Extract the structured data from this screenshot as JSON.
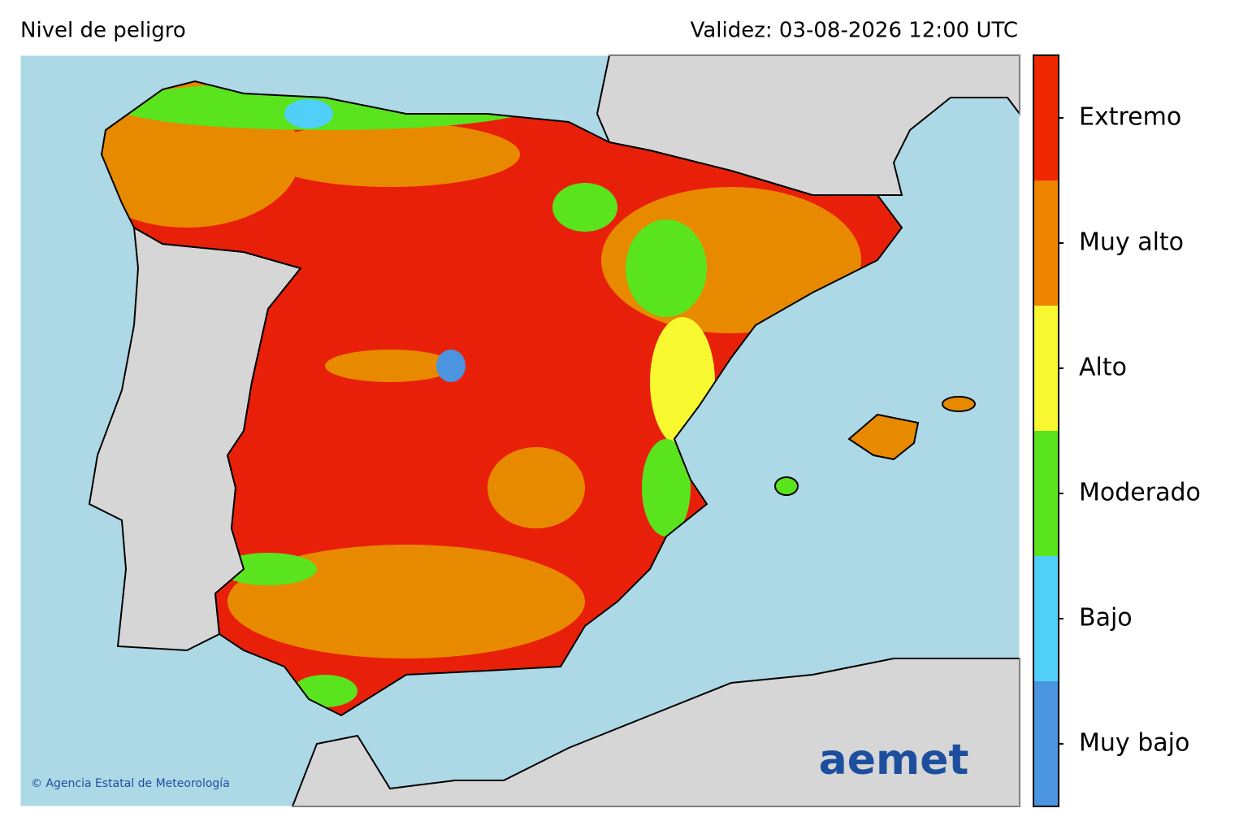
{
  "header": {
    "title": "Nivel de peligro",
    "validity": "Validez: 03-08-2026 12:00 UTC"
  },
  "legend": {
    "levels": [
      {
        "label": "Muy bajo",
        "color": "#4a94e0"
      },
      {
        "label": "Bajo",
        "color": "#50d0f8"
      },
      {
        "label": "Moderado",
        "color": "#5ae41e"
      },
      {
        "label": "Alto",
        "color": "#f8f830"
      },
      {
        "label": "Muy alto",
        "color": "#ee8400"
      },
      {
        "label": "Extremo",
        "color": "#f02800"
      }
    ]
  },
  "footer": {
    "copyright": "© Agencia Estatal de Meteorología",
    "logo": "aemet"
  }
}
